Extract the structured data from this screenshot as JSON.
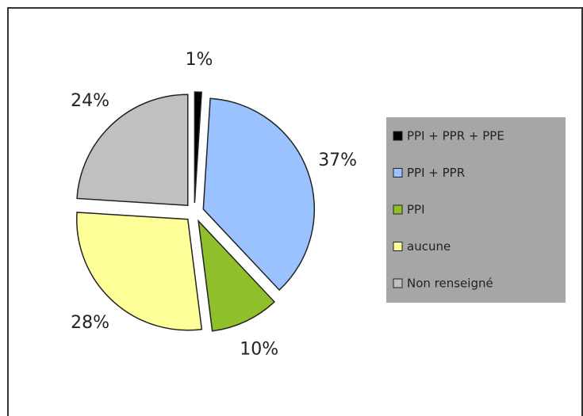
{
  "chart_data": {
    "type": "pie",
    "categories": [
      "PPI + PPR + PPE",
      "PPI + PPR",
      "PPI",
      "aucune",
      "Non renseigné"
    ],
    "values": [
      1,
      37,
      10,
      28,
      24
    ],
    "value_labels": [
      "1%",
      "37%",
      "10%",
      "28%",
      "24%"
    ],
    "colors": [
      "#000000",
      "#99c2ff",
      "#8fbf2a",
      "#ffff99",
      "#c0c0c0"
    ],
    "legend": "right"
  }
}
